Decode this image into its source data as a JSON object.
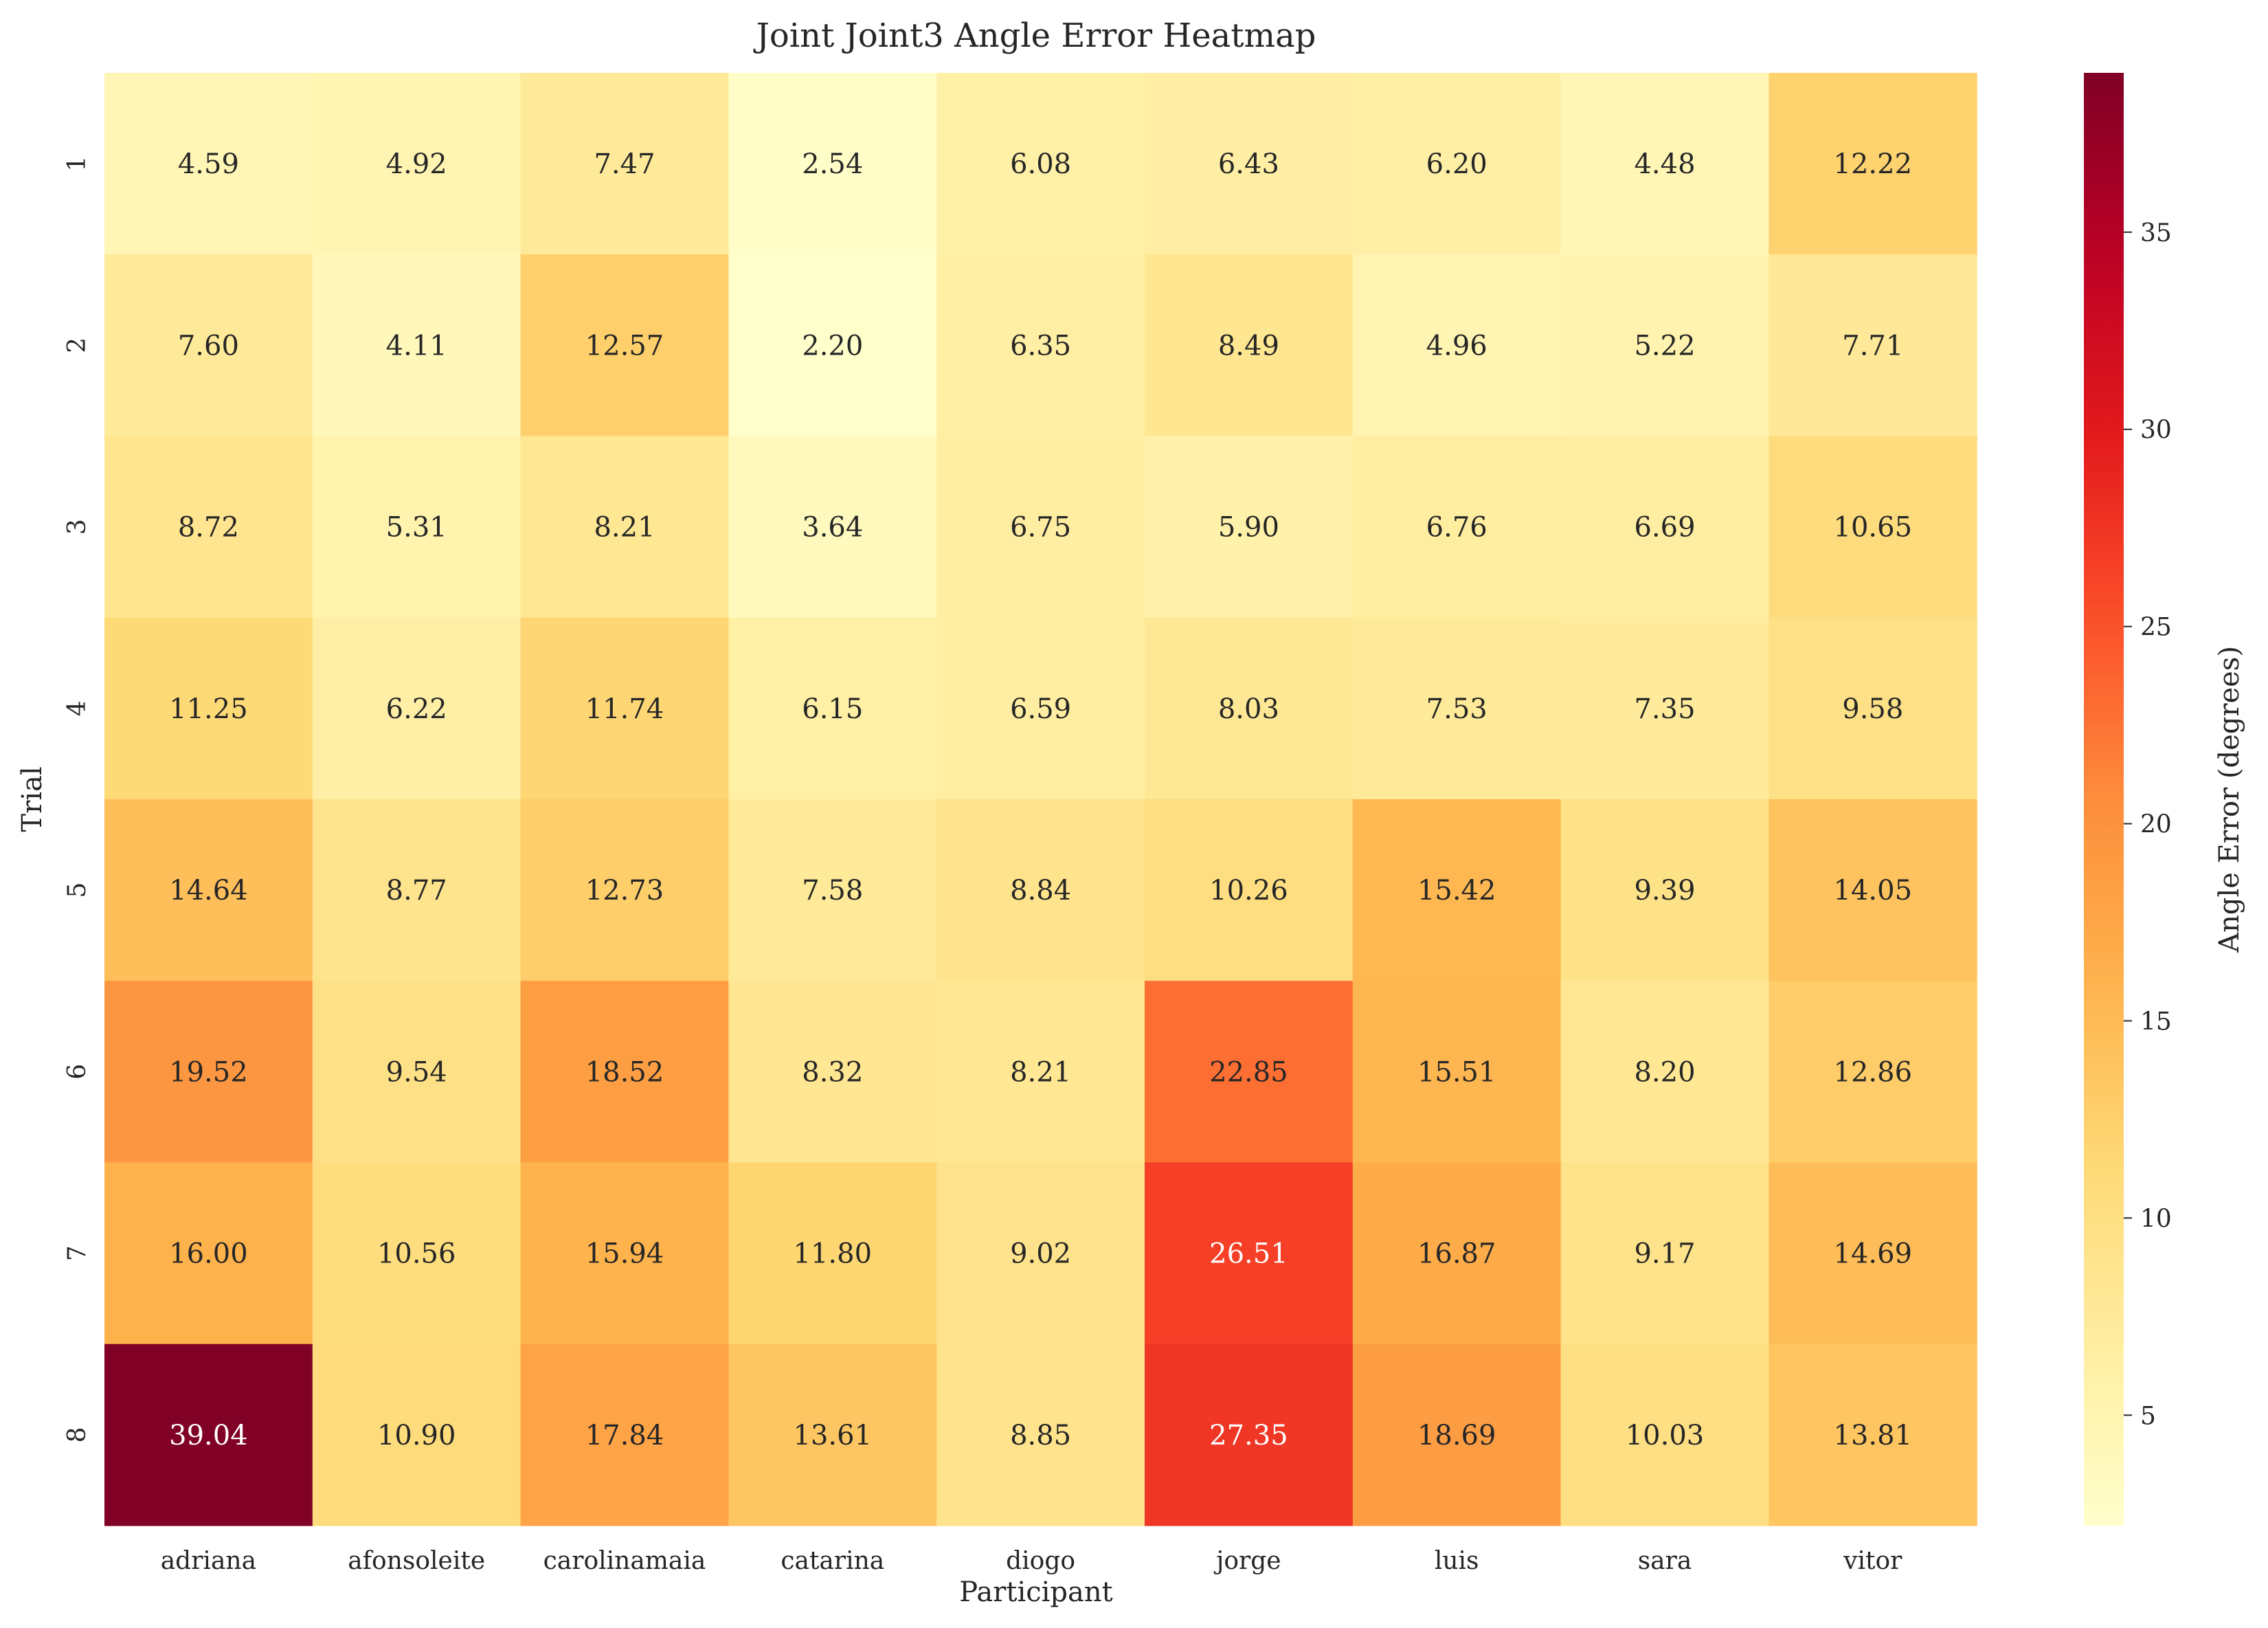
{
  "chart_data": {
    "type": "heatmap",
    "title": "Joint Joint3 Angle Error Heatmap",
    "xlabel": "Participant",
    "ylabel": "Trial",
    "colorbar_label": "Angle Error (degrees)",
    "colormap": "YlOrRd",
    "x_categories": [
      "adriana",
      "afonsoleite",
      "carolinamaia",
      "catarina",
      "diogo",
      "jorge",
      "luis",
      "sara",
      "vitor"
    ],
    "y_categories": [
      "1",
      "2",
      "3",
      "4",
      "5",
      "6",
      "7",
      "8"
    ],
    "values": [
      [
        4.59,
        4.92,
        7.47,
        2.54,
        6.08,
        6.43,
        6.2,
        4.48,
        12.22
      ],
      [
        7.6,
        4.11,
        12.57,
        2.2,
        6.35,
        8.49,
        4.96,
        5.22,
        7.71
      ],
      [
        8.72,
        5.31,
        8.21,
        3.64,
        6.75,
        5.9,
        6.76,
        6.69,
        10.65
      ],
      [
        11.25,
        6.22,
        11.74,
        6.15,
        6.59,
        8.03,
        7.53,
        7.35,
        9.58
      ],
      [
        14.64,
        8.77,
        12.73,
        7.58,
        8.84,
        10.26,
        15.42,
        9.39,
        14.05
      ],
      [
        19.52,
        9.54,
        18.52,
        8.32,
        8.21,
        22.85,
        15.51,
        8.2,
        12.86
      ],
      [
        16.0,
        10.56,
        15.94,
        11.8,
        9.02,
        26.51,
        16.87,
        9.17,
        14.69
      ],
      [
        39.04,
        10.9,
        17.84,
        13.61,
        8.85,
        27.35,
        18.69,
        10.03,
        13.81
      ]
    ],
    "value_format": "2 decimals",
    "color_range": [
      2.2,
      39.04
    ],
    "colorbar_ticks": [
      5,
      10,
      15,
      20,
      25,
      30,
      35
    ]
  }
}
